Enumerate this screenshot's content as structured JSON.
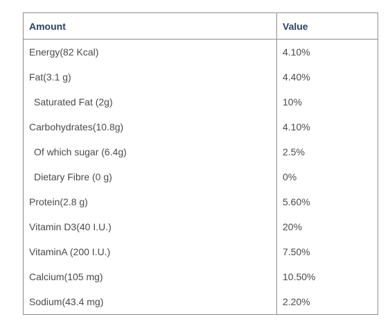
{
  "table": {
    "headers": [
      "Amount",
      "Value"
    ],
    "rows": [
      {
        "amount": "Energy(82 Kcal)",
        "value": "4.10%",
        "indent": false
      },
      {
        "amount": "Fat(3.1 g)",
        "value": "4.40%",
        "indent": false
      },
      {
        "amount": "Saturated Fat (2g)",
        "value": "10%",
        "indent": true
      },
      {
        "amount": "Carbohydrates(10.8g)",
        "value": "4.10%",
        "indent": false
      },
      {
        "amount": "Of which sugar (6.4g)",
        "value": "2.5%",
        "indent": true
      },
      {
        "amount": "Dietary Fibre (0 g)",
        "value": "0%",
        "indent": true
      },
      {
        "amount": "Protein(2.8 g)",
        "value": "5.60%",
        "indent": false
      },
      {
        "amount": "Vitamin D3(40 I.U.)",
        "value": "20%",
        "indent": false
      },
      {
        "amount": "VitaminA (200 I.U.)",
        "value": "7.50%",
        "indent": false
      },
      {
        "amount": "Calcium(105 mg)",
        "value": "10.50%",
        "indent": false
      },
      {
        "amount": "Sodium(43.4 mg)",
        "value": "2.20%",
        "indent": false
      }
    ]
  },
  "colors": {
    "header_text": "#2b3f6b",
    "body_text": "#4a4a4a",
    "border": "#8c8c8c"
  }
}
